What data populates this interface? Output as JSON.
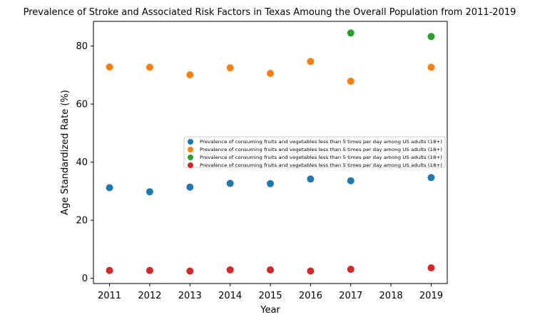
{
  "chart_data": {
    "type": "scatter",
    "title": "Prevalence of Stroke and Associated Risk Factors in Texas Amoung the Overall Population from 2011-2019",
    "xlabel": "Year",
    "ylabel": "Age Standardized Rate (%)",
    "xlim": [
      2010.6,
      2019.4
    ],
    "ylim": [
      -1.8,
      88.5
    ],
    "xticks": [
      2011,
      2012,
      2013,
      2014,
      2015,
      2016,
      2017,
      2018,
      2019
    ],
    "yticks": [
      0,
      20,
      40,
      60,
      80
    ],
    "grid": false,
    "legend_position": "center-right",
    "series": [
      {
        "name": "Prevalence of consuming fruits and vegetables less than 5 times per day among US adults (18+)",
        "color": "#1f77b4",
        "points": [
          [
            2011,
            31.2
          ],
          [
            2012,
            29.8
          ],
          [
            2013,
            31.4
          ],
          [
            2014,
            32.7
          ],
          [
            2015,
            32.6
          ],
          [
            2016,
            34.2
          ],
          [
            2017,
            33.6
          ],
          [
            2019,
            34.7
          ]
        ]
      },
      {
        "name": "Prevalence of consuming fruits and vegetables less than 5 times per day among US adults (18+)",
        "color": "#ff7f0e",
        "points": [
          [
            2011,
            72.8
          ],
          [
            2012,
            72.7
          ],
          [
            2013,
            70.1
          ],
          [
            2014,
            72.5
          ],
          [
            2015,
            70.6
          ],
          [
            2016,
            74.7
          ],
          [
            2017,
            67.9
          ],
          [
            2019,
            72.7
          ]
        ]
      },
      {
        "name": "Prevalence of consuming fruits and vegetables less than 5 times per day among US adults (18+)",
        "color": "#2ca02c",
        "points": [
          [
            2017,
            84.5
          ],
          [
            2019,
            83.3
          ]
        ]
      },
      {
        "name": "Prevalence of consuming fruits and vegetables less than 5 times per day among US adults (18+)",
        "color": "#d62728",
        "points": [
          [
            2011,
            2.7
          ],
          [
            2012,
            2.7
          ],
          [
            2013,
            2.5
          ],
          [
            2014,
            2.9
          ],
          [
            2015,
            2.9
          ],
          [
            2016,
            2.5
          ],
          [
            2017,
            3.1
          ],
          [
            2019,
            3.6
          ]
        ]
      }
    ]
  }
}
